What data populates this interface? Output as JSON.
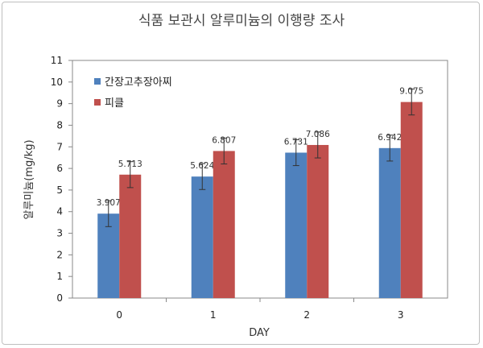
{
  "chart_data": {
    "type": "bar",
    "title": "식품 보관시 알루미늄의 이행량 조사",
    "xlabel": "DAY",
    "ylabel": "알루미늄(mg/kg)",
    "categories": [
      "0",
      "1",
      "2",
      "3"
    ],
    "ylim": [
      0,
      11
    ],
    "yticks": [
      0,
      1,
      2,
      3,
      4,
      5,
      6,
      7,
      8,
      9,
      10,
      11
    ],
    "grid": false,
    "legend_position": "top-left",
    "error_bars": true,
    "series": [
      {
        "name": "간장고추장아찌",
        "color": "#4f81bd",
        "values": [
          3.907,
          5.624,
          6.731,
          6.942
        ],
        "labels": [
          "3.907",
          "5.624",
          "6.731",
          "6.942"
        ],
        "errors": [
          0.6,
          0.6,
          0.6,
          0.6
        ]
      },
      {
        "name": "피클",
        "color": "#c0504d",
        "values": [
          5.713,
          6.807,
          7.086,
          9.075
        ],
        "labels": [
          "5.713",
          "6.807",
          "7.086",
          "9.075"
        ],
        "errors": [
          0.6,
          0.6,
          0.6,
          0.6
        ]
      }
    ]
  }
}
